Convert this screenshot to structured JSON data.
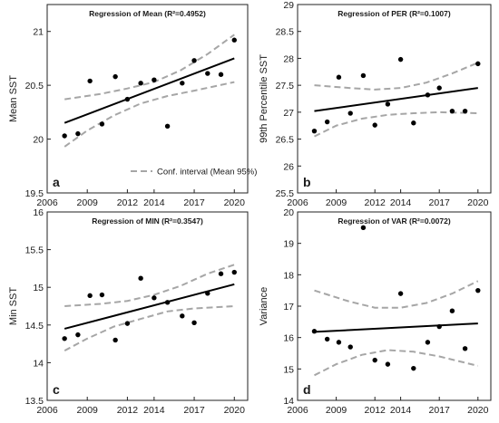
{
  "chart_data": [
    {
      "id": "a",
      "type": "scatter",
      "title": "Regression of Mean (R²=0.4952)",
      "xlabel": "",
      "ylabel": "Mean SST",
      "panel_label": "a",
      "xlim": [
        2006,
        2021
      ],
      "ylim": [
        19.5,
        21.25
      ],
      "x_ticks": [
        2006,
        2009,
        2012,
        2014,
        2017,
        2020
      ],
      "y_ticks": [
        19.5,
        20,
        20.5,
        21
      ],
      "x_tick_labels": [
        "2006",
        "2009",
        "2012",
        "2014",
        "2017",
        "2020"
      ],
      "y_tick_labels": [
        "19.5",
        "20",
        "20.5",
        "21"
      ],
      "points": {
        "x": [
          2007.3,
          2008.3,
          2009.2,
          2010.1,
          2011.1,
          2012.0,
          2013.0,
          2014.0,
          2015.0,
          2016.1,
          2017.0,
          2018.0,
          2019.0,
          2020.0
        ],
        "y": [
          20.03,
          20.05,
          20.54,
          20.14,
          20.58,
          20.37,
          20.52,
          20.55,
          20.12,
          20.52,
          20.73,
          20.61,
          20.6,
          20.92
        ]
      },
      "fit": {
        "x": [
          2007.3,
          2020.0
        ],
        "y": [
          20.15,
          20.75
        ]
      },
      "ci_upper": {
        "x": [
          2007.3,
          2010.0,
          2012.0,
          2014.0,
          2016.0,
          2018.0,
          2020.0
        ],
        "y": [
          20.37,
          20.42,
          20.47,
          20.53,
          20.64,
          20.79,
          20.97
        ]
      },
      "ci_lower": {
        "x": [
          2007.3,
          2009.0,
          2011.0,
          2013.0,
          2015.0,
          2017.0,
          2020.0
        ],
        "y": [
          19.93,
          20.08,
          20.22,
          20.33,
          20.4,
          20.45,
          20.53
        ]
      },
      "legend": {
        "label": "Conf. interval (Mean 95%)",
        "position": "bottom-right"
      }
    },
    {
      "id": "b",
      "type": "scatter",
      "title": "Regression of PER (R²=0.1007)",
      "xlabel": "",
      "ylabel": "99th Percentile SST",
      "panel_label": "b",
      "xlim": [
        2006,
        2021
      ],
      "ylim": [
        25.5,
        29
      ],
      "x_ticks": [
        2006,
        2009,
        2012,
        2014,
        2017,
        2020
      ],
      "y_ticks": [
        25.5,
        26,
        26.5,
        27,
        27.5,
        28,
        28.5,
        29
      ],
      "x_tick_labels": [
        "2006",
        "2009",
        "2012",
        "2014",
        "2017",
        "2020"
      ],
      "y_tick_labels": [
        "25.5",
        "26",
        "26.5",
        "27",
        "27.5",
        "28",
        "28.5",
        "29"
      ],
      "points": {
        "x": [
          2007.3,
          2008.3,
          2009.2,
          2010.1,
          2011.1,
          2012.0,
          2013.0,
          2014.0,
          2015.0,
          2016.1,
          2017.0,
          2018.0,
          2019.0,
          2020.0
        ],
        "y": [
          26.65,
          26.82,
          27.65,
          26.98,
          27.68,
          26.76,
          27.15,
          27.98,
          26.8,
          27.32,
          27.45,
          27.02,
          27.02,
          27.9
        ]
      },
      "fit": {
        "x": [
          2007.3,
          2020.0
        ],
        "y": [
          27.02,
          27.45
        ]
      },
      "ci_upper": {
        "x": [
          2007.3,
          2010.0,
          2012.0,
          2014.0,
          2016.0,
          2018.0,
          2020.0
        ],
        "y": [
          27.5,
          27.45,
          27.42,
          27.45,
          27.55,
          27.72,
          27.92
        ]
      },
      "ci_lower": {
        "x": [
          2007.3,
          2009.0,
          2011.0,
          2013.0,
          2015.0,
          2017.0,
          2020.0
        ],
        "y": [
          26.55,
          26.75,
          26.88,
          26.95,
          26.98,
          27.0,
          26.98
        ]
      },
      "legend": null
    },
    {
      "id": "c",
      "type": "scatter",
      "title": "Regression of MIN (R²=0.3547)",
      "xlabel": "",
      "ylabel": "Min SST",
      "panel_label": "c",
      "xlim": [
        2006,
        2021
      ],
      "ylim": [
        13.5,
        16
      ],
      "x_ticks": [
        2006,
        2009,
        2012,
        2014,
        2017,
        2020
      ],
      "y_ticks": [
        13.5,
        14,
        14.5,
        15,
        15.5,
        16
      ],
      "x_tick_labels": [
        "2006",
        "2009",
        "2012",
        "2014",
        "2017",
        "2020"
      ],
      "y_tick_labels": [
        "13.5",
        "14",
        "14.5",
        "15",
        "15.5",
        "16"
      ],
      "points": {
        "x": [
          2007.3,
          2008.3,
          2009.2,
          2010.1,
          2011.1,
          2012.0,
          2013.0,
          2014.0,
          2015.0,
          2016.1,
          2017.0,
          2018.0,
          2019.0,
          2020.0
        ],
        "y": [
          14.32,
          14.37,
          14.89,
          14.9,
          14.3,
          14.52,
          15.12,
          14.86,
          14.8,
          14.62,
          14.53,
          14.92,
          15.18,
          15.2
        ]
      },
      "fit": {
        "x": [
          2007.3,
          2020.0
        ],
        "y": [
          14.45,
          15.04
        ]
      },
      "ci_upper": {
        "x": [
          2007.3,
          2010.0,
          2012.0,
          2014.0,
          2016.0,
          2018.0,
          2020.0
        ],
        "y": [
          14.75,
          14.78,
          14.82,
          14.9,
          15.02,
          15.18,
          15.3
        ]
      },
      "ci_lower": {
        "x": [
          2007.3,
          2009.0,
          2011.0,
          2013.0,
          2015.0,
          2017.0,
          2020.0
        ],
        "y": [
          14.16,
          14.32,
          14.48,
          14.58,
          14.68,
          14.72,
          14.75
        ]
      },
      "legend": null
    },
    {
      "id": "d",
      "type": "scatter",
      "title": "Regression of VAR (R²=0.0072)",
      "xlabel": "",
      "ylabel": "Variance",
      "panel_label": "d",
      "xlim": [
        2006,
        2021
      ],
      "ylim": [
        14,
        20
      ],
      "x_ticks": [
        2006,
        2009,
        2012,
        2014,
        2017,
        2020
      ],
      "y_ticks": [
        14,
        15,
        16,
        17,
        18,
        19,
        20
      ],
      "x_tick_labels": [
        "2006",
        "2009",
        "2012",
        "2014",
        "2017",
        "2020"
      ],
      "y_tick_labels": [
        "14",
        "15",
        "16",
        "17",
        "18",
        "19",
        "20"
      ],
      "points": {
        "x": [
          2007.3,
          2008.3,
          2009.2,
          2010.1,
          2011.1,
          2012.0,
          2013.0,
          2014.0,
          2015.0,
          2016.1,
          2017.0,
          2018.0,
          2019.0,
          2020.0
        ],
        "y": [
          16.2,
          15.95,
          15.85,
          15.7,
          19.5,
          15.28,
          15.15,
          17.4,
          15.02,
          15.85,
          16.35,
          16.85,
          15.65,
          17.5
        ]
      },
      "fit": {
        "x": [
          2007.3,
          2020.0
        ],
        "y": [
          16.18,
          16.45
        ]
      },
      "ci_upper": {
        "x": [
          2007.3,
          2010.0,
          2012.0,
          2014.0,
          2016.0,
          2018.0,
          2020.0
        ],
        "y": [
          17.5,
          17.15,
          16.95,
          16.95,
          17.1,
          17.4,
          17.8
        ]
      },
      "ci_lower": {
        "x": [
          2007.3,
          2009.0,
          2011.0,
          2013.0,
          2015.0,
          2017.0,
          2020.0
        ],
        "y": [
          14.8,
          15.15,
          15.45,
          15.6,
          15.55,
          15.4,
          15.1
        ]
      },
      "legend": null
    }
  ]
}
